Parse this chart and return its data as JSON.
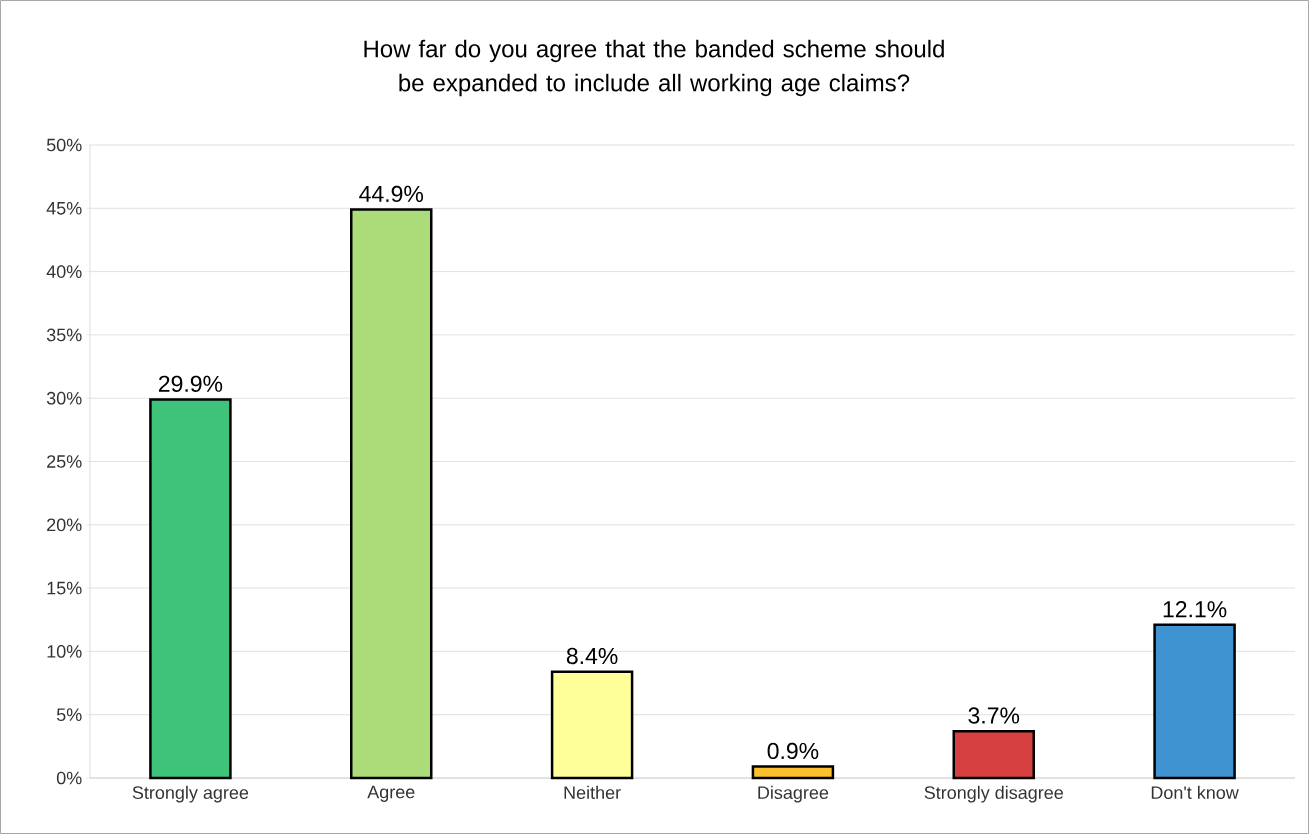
{
  "chart_data": {
    "type": "bar",
    "title": "How far do you agree that the banded scheme should be expanded to include all working age claims?",
    "categories": [
      "Strongly agree",
      "Agree",
      "Neither",
      "Disagree",
      "Strongly disagree",
      "Don't know"
    ],
    "values": [
      29.9,
      44.9,
      8.4,
      0.9,
      3.7,
      12.1
    ],
    "value_labels": [
      "29.9%",
      "44.9%",
      "8.4%",
      "0.9%",
      "3.7%",
      "12.1%"
    ],
    "colors": [
      "#3fc27a",
      "#acdc7a",
      "#ffff99",
      "#fcc02e",
      "#d64040",
      "#3f93d0"
    ],
    "ylim": [
      0,
      50
    ],
    "yticks": [
      {
        "value": 0,
        "label": "0%"
      },
      {
        "value": 5,
        "label": "5%"
      },
      {
        "value": 10,
        "label": "10%"
      },
      {
        "value": 15,
        "label": "15%"
      },
      {
        "value": 20,
        "label": "20%"
      },
      {
        "value": 25,
        "label": "25%"
      },
      {
        "value": 30,
        "label": "30%"
      },
      {
        "value": 35,
        "label": "35%"
      },
      {
        "value": 40,
        "label": "40%"
      },
      {
        "value": 45,
        "label": "45%"
      },
      {
        "value": 50,
        "label": "50%"
      }
    ],
    "grid": "y"
  }
}
